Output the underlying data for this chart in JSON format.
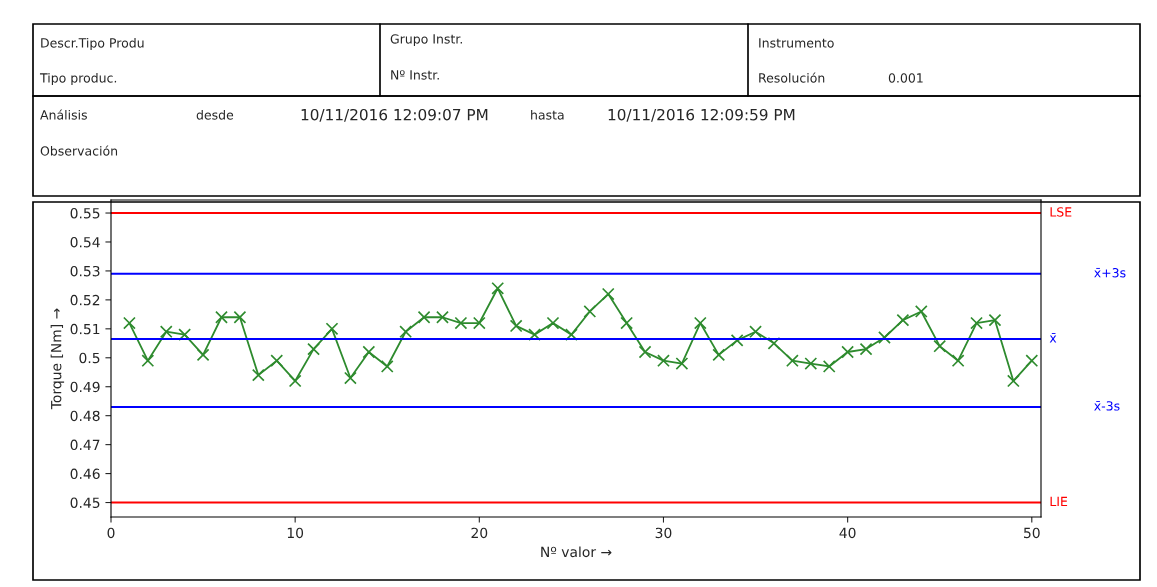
{
  "chart_data": {
    "type": "line",
    "xlabel": "Nº valor →",
    "ylabel": "Torque [Nm] →",
    "x": [
      1,
      2,
      3,
      4,
      5,
      6,
      7,
      8,
      9,
      10,
      11,
      12,
      13,
      14,
      15,
      16,
      17,
      18,
      19,
      20,
      21,
      22,
      23,
      24,
      25,
      26,
      27,
      28,
      29,
      30,
      31,
      32,
      33,
      34,
      35,
      36,
      37,
      38,
      39,
      40,
      41,
      42,
      43,
      44,
      45,
      46,
      47,
      48,
      49,
      50
    ],
    "series": [
      {
        "color": "#2e8b2e",
        "values": [
          0.512,
          0.499,
          0.509,
          0.508,
          0.501,
          0.514,
          0.514,
          0.494,
          0.499,
          0.492,
          0.503,
          0.51,
          0.493,
          0.502,
          0.497,
          0.509,
          0.514,
          0.514,
          0.512,
          0.512,
          0.524,
          0.511,
          0.508,
          0.512,
          0.508,
          0.516,
          0.522,
          0.512,
          0.502,
          0.499,
          0.498,
          0.512,
          0.501,
          0.506,
          0.509,
          0.505,
          0.499,
          0.498,
          0.497,
          0.502,
          0.503,
          0.507,
          0.513,
          0.516,
          0.504,
          0.499,
          0.512,
          0.513,
          0.492,
          0.499
        ]
      }
    ],
    "marker": "cross",
    "line_style": "solid",
    "grid": false,
    "legend": false,
    "xlim": [
      0,
      50.5
    ],
    "xticks": [
      0,
      10,
      20,
      30,
      40,
      50
    ],
    "ylim": [
      0.445,
      0.5545
    ],
    "yticks": [
      0.45,
      0.46,
      0.47,
      0.48,
      0.49,
      0.5,
      0.51,
      0.52,
      0.53,
      0.54,
      0.55
    ],
    "ref_lines": [
      {
        "axis": "y",
        "value": 0.55,
        "label": "LSE",
        "color": "#ff0000"
      },
      {
        "axis": "y",
        "value": 0.529,
        "label": "x̄+3s",
        "color": "#0000ff"
      },
      {
        "axis": "y",
        "value": 0.5065,
        "label": "x̄",
        "color": "#0000ff"
      },
      {
        "axis": "y",
        "value": 0.483,
        "label": "x̄-3s",
        "color": "#0000ff"
      },
      {
        "axis": "y",
        "value": 0.45,
        "label": "LIE",
        "color": "#ff0000"
      }
    ],
    "annotations": [
      "Descr.Tipo Produ",
      "Tipo produc.",
      "Grupo Instr.",
      "Nº Instr.",
      "Instrumento",
      "Resolución",
      "0.001",
      "Análisis",
      "desde",
      "10/11/2016 12:09:07 PM",
      "hasta",
      "10/11/2016 12:09:59 PM",
      "Observación"
    ]
  }
}
